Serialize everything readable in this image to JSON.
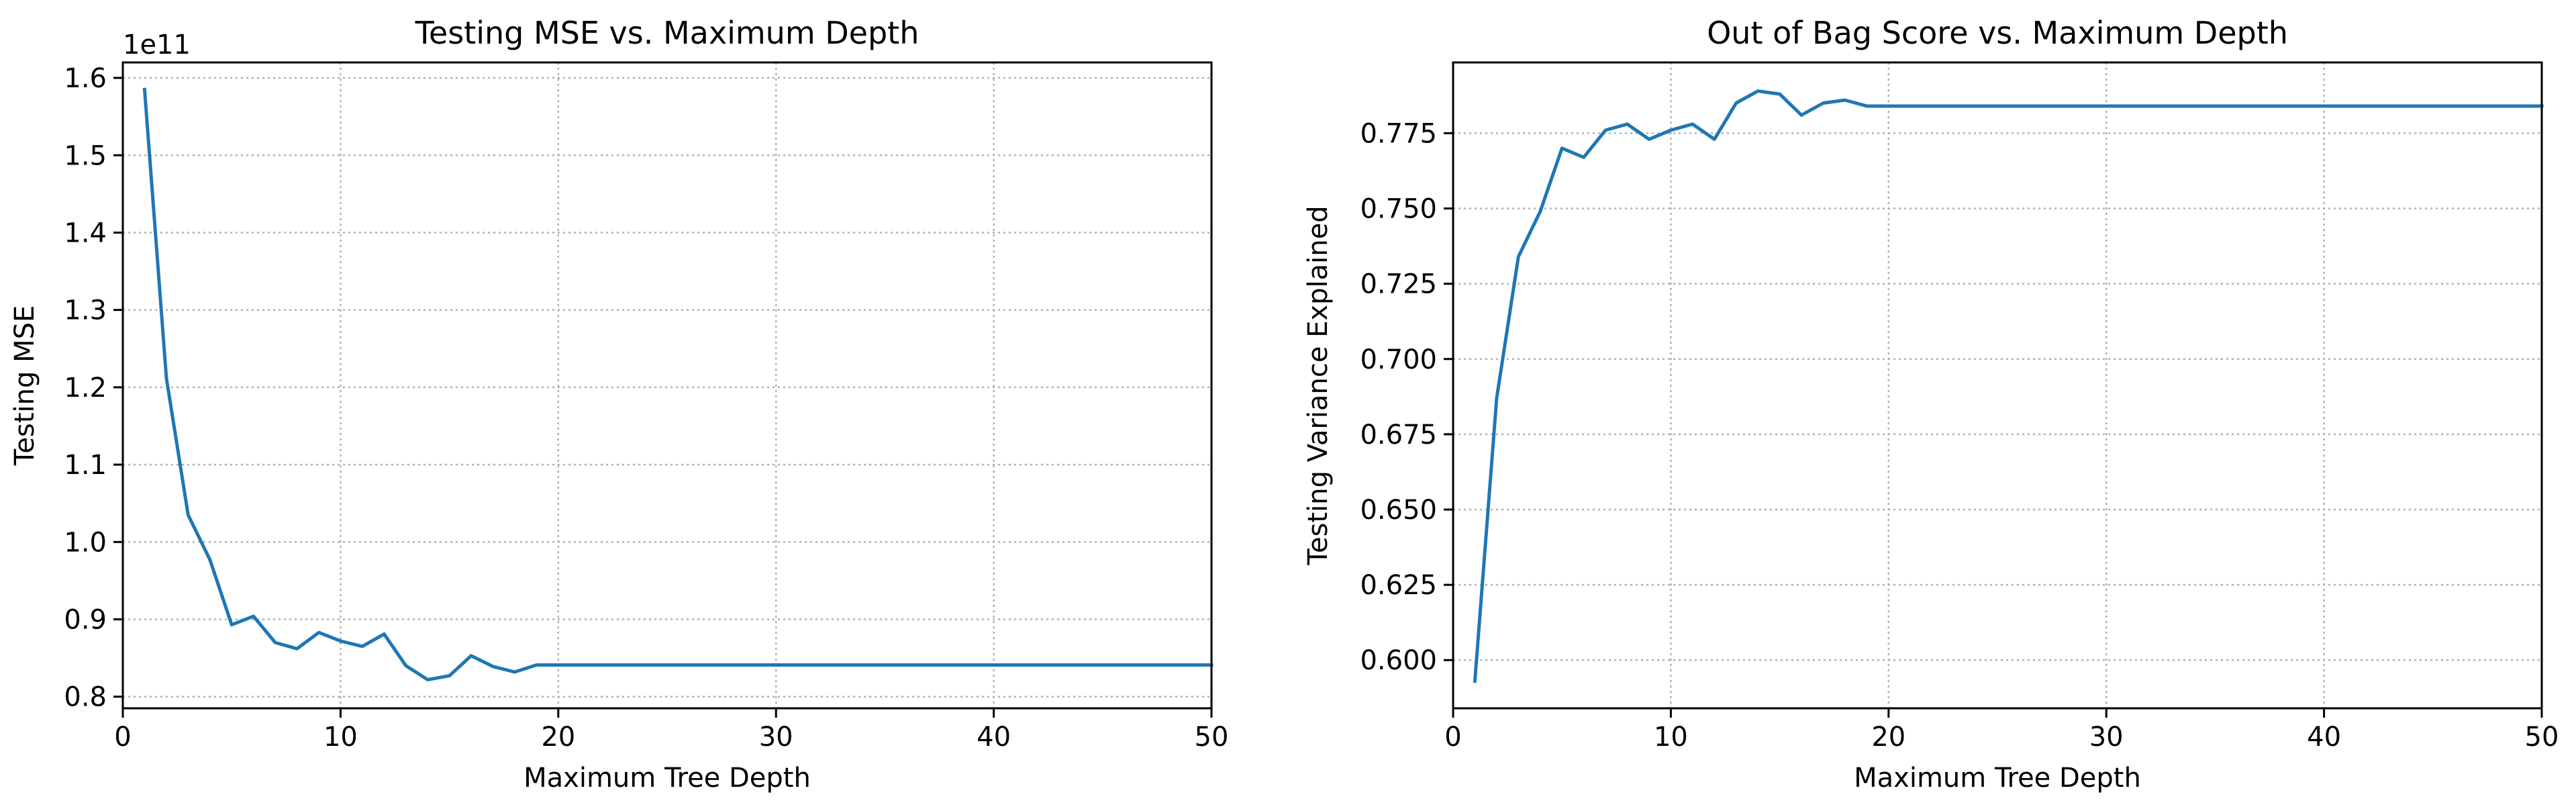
{
  "colors": {
    "line": "#1f77b4",
    "grid": "#b0b0b0",
    "axis": "#000000",
    "background": "#ffffff"
  },
  "chart_data": [
    {
      "type": "line",
      "title": "Testing MSE vs. Maximum Depth",
      "xlabel": "Maximum Tree Depth",
      "ylabel": "Testing MSE",
      "offset_text": "1e11",
      "xlim": [
        0,
        50
      ],
      "ylim": [
        0.785,
        1.62
      ],
      "xticks": [
        0,
        10,
        20,
        30,
        40,
        50
      ],
      "xtick_labels": [
        "0",
        "10",
        "20",
        "30",
        "40",
        "50"
      ],
      "yticks": [
        0.8,
        0.9,
        1.0,
        1.1,
        1.2,
        1.3,
        1.4,
        1.5,
        1.6
      ],
      "ytick_labels": [
        "0.8",
        "0.9",
        "1.0",
        "1.1",
        "1.2",
        "1.3",
        "1.4",
        "1.5",
        "1.6"
      ],
      "grid": true,
      "series": [
        {
          "x": [
            1,
            2,
            3,
            4,
            5,
            6,
            7,
            8,
            9,
            10,
            11,
            12,
            13,
            14,
            15,
            16,
            17,
            18,
            19,
            20,
            21,
            22,
            23,
            24,
            25,
            26,
            27,
            28,
            29,
            30,
            31,
            32,
            33,
            34,
            35,
            36,
            37,
            38,
            39,
            40,
            41,
            42,
            43,
            44,
            45,
            46,
            47,
            48,
            49,
            50
          ],
          "values": [
            1.585,
            1.212,
            1.035,
            0.977,
            0.893,
            0.904,
            0.87,
            0.862,
            0.883,
            0.872,
            0.865,
            0.881,
            0.84,
            0.822,
            0.827,
            0.853,
            0.839,
            0.832,
            0.841,
            0.841,
            0.841,
            0.841,
            0.841,
            0.841,
            0.841,
            0.841,
            0.841,
            0.841,
            0.841,
            0.841,
            0.841,
            0.841,
            0.841,
            0.841,
            0.841,
            0.841,
            0.841,
            0.841,
            0.841,
            0.841,
            0.841,
            0.841,
            0.841,
            0.841,
            0.841,
            0.841,
            0.841,
            0.841,
            0.841,
            0.841
          ]
        }
      ]
    },
    {
      "type": "line",
      "title": "Out of Bag Score vs. Maximum Depth",
      "xlabel": "Maximum Tree Depth",
      "ylabel": "Testing Variance Explained",
      "xlim": [
        0,
        50
      ],
      "ylim": [
        0.584,
        0.7985
      ],
      "xticks": [
        0,
        10,
        20,
        30,
        40,
        50
      ],
      "xtick_labels": [
        "0",
        "10",
        "20",
        "30",
        "40",
        "50"
      ],
      "yticks": [
        0.6,
        0.625,
        0.65,
        0.675,
        0.7,
        0.725,
        0.75,
        0.775
      ],
      "ytick_labels": [
        "0.600",
        "0.625",
        "0.650",
        "0.675",
        "0.700",
        "0.725",
        "0.750",
        "0.775"
      ],
      "grid": true,
      "series": [
        {
          "x": [
            1,
            2,
            3,
            4,
            5,
            6,
            7,
            8,
            9,
            10,
            11,
            12,
            13,
            14,
            15,
            16,
            17,
            18,
            19,
            20,
            21,
            22,
            23,
            24,
            25,
            26,
            27,
            28,
            29,
            30,
            31,
            32,
            33,
            34,
            35,
            36,
            37,
            38,
            39,
            40,
            41,
            42,
            43,
            44,
            45,
            46,
            47,
            48,
            49,
            50
          ],
          "values": [
            0.593,
            0.687,
            0.734,
            0.749,
            0.77,
            0.767,
            0.776,
            0.778,
            0.773,
            0.776,
            0.778,
            0.773,
            0.785,
            0.789,
            0.788,
            0.781,
            0.785,
            0.786,
            0.784,
            0.784,
            0.784,
            0.784,
            0.784,
            0.784,
            0.784,
            0.784,
            0.784,
            0.784,
            0.784,
            0.784,
            0.784,
            0.784,
            0.784,
            0.784,
            0.784,
            0.784,
            0.784,
            0.784,
            0.784,
            0.784,
            0.784,
            0.784,
            0.784,
            0.784,
            0.784,
            0.784,
            0.784,
            0.784,
            0.784,
            0.784
          ]
        }
      ]
    }
  ]
}
